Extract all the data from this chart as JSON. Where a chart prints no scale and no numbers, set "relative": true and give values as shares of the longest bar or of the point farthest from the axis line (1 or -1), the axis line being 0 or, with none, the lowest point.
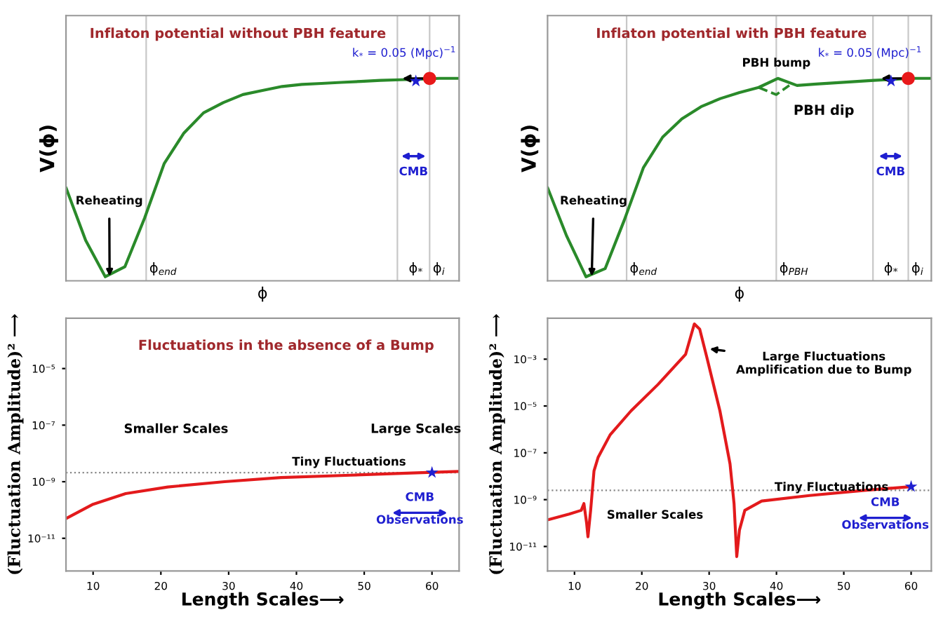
{
  "chart_data": [
    {
      "type": "line",
      "title": "Inflaton potential without PBH feature",
      "xlabel": "ϕ",
      "ylabel": "V(ϕ)",
      "relative": true,
      "categories": [
        null,
        null,
        null,
        null,
        null,
        null,
        null,
        null,
        null,
        null,
        null,
        null,
        null,
        null,
        null,
        null,
        null,
        null,
        null,
        null,
        null
      ],
      "series": [
        {
          "color": "#2a8a2a",
          "values": [
            0.46,
            0.2,
            0.02,
            0.07,
            0.31,
            0.58,
            0.73,
            0.83,
            0.88,
            0.92,
            0.94,
            0.96,
            0.97,
            0.975,
            0.98,
            0.985,
            0.99,
            0.993,
            0.996,
            1.0,
            1.0
          ]
        }
      ],
      "annotations": [
        "Reheating",
        "CMB",
        "k$_{*}$ = 0.05 (Mpc)$^{−1}$",
        "ϕ$_{end}$",
        "ϕ$_{*}$",
        "ϕ$_{i}$"
      ]
    },
    {
      "type": "line",
      "title": "Inflaton potential with PBH feature",
      "xlabel": "ϕ",
      "ylabel": "V(ϕ)",
      "relative": true,
      "categories": [
        null,
        null,
        null,
        null,
        null,
        null,
        null,
        null,
        null,
        null,
        null,
        null,
        null,
        null,
        null,
        null,
        null,
        null,
        null,
        null,
        null
      ],
      "series": [
        {
          "color": "#2a8a2a",
          "values": [
            0.46,
            0.22,
            0.02,
            0.06,
            0.3,
            0.56,
            0.71,
            0.8,
            0.86,
            0.9,
            0.93,
            0.955,
            1.0,
            0.965,
            0.972,
            0.978,
            0.984,
            0.99,
            0.995,
            1.0,
            1.0
          ]
        }
      ],
      "annotations": [
        "Reheating",
        "PBH bump",
        "PBH dip",
        "CMB",
        "k$_{*}$ = 0.05 (Mpc)$^{−1}$",
        "ϕ$_{end}$",
        "ϕ$_{PBH}$",
        "ϕ$_{*}$",
        "ϕ$_{i}$"
      ]
    },
    {
      "type": "line",
      "title": "Fluctuations in the absence of a Bump",
      "xlabel": "Length Scales⟶",
      "ylabel": "(Fluctuation Amplitude)² ⟶",
      "log": "y",
      "xlim": [
        6,
        64
      ],
      "xticks": [
        10,
        20,
        30,
        40,
        50,
        60
      ],
      "ylim": [
        7e-13,
        0.0006
      ],
      "yticks": [
        {
          "value": 1e-11,
          "label": "10⁻¹¹"
        },
        {
          "value": 1e-09,
          "label": "10⁻⁹"
        },
        {
          "value": 1e-07,
          "label": "10⁻⁷"
        },
        {
          "value": 1e-05,
          "label": "10⁻⁵"
        }
      ],
      "series": [
        {
          "color": "#e31a1c",
          "x": [
            6,
            10,
            14.8,
            21,
            29.4,
            37.7,
            48,
            58.5,
            64
          ],
          "values": [
            5e-11,
            1.6e-10,
            3.8e-10,
            6.5e-10,
            1e-09,
            1.4e-09,
            1.7e-09,
            2.1e-09,
            2.3e-09
          ]
        },
        {
          "type": "scatter",
          "marker": "star",
          "color": "#1f1fd0",
          "x": [
            60
          ],
          "values": [
            2.1e-09
          ]
        }
      ],
      "ref_lines": [
        {
          "axis": "y",
          "value": 2.1e-09,
          "color": "#888888",
          "line_style": "dotted"
        }
      ],
      "annotations": [
        "Smaller Scales",
        "Large Scales",
        "Tiny Fluctuations",
        "CMB",
        "Observations"
      ]
    },
    {
      "type": "line",
      "xlabel": "Length Scales⟶",
      "ylabel": "(Fluctuation Amplitude)² ⟶",
      "log": "y",
      "xlim": [
        6,
        63
      ],
      "xticks": [
        10,
        20,
        30,
        40,
        50,
        60
      ],
      "ylim": [
        9e-13,
        0.056
      ],
      "yticks": [
        {
          "value": 1e-11,
          "label": "10⁻¹¹"
        },
        {
          "value": 1e-09,
          "label": "10⁻⁹"
        },
        {
          "value": 1e-07,
          "label": "10⁻⁷"
        },
        {
          "value": 1e-05,
          "label": "10⁻⁵"
        },
        {
          "value": 0.001,
          "label": "10⁻³"
        }
      ],
      "series": [
        {
          "color": "#e31a1c",
          "x": [
            6.1,
            9.2,
            11.0,
            11.4,
            11.8,
            12.0,
            12.4,
            12.9,
            13.5,
            15.3,
            18.4,
            22.4,
            26.5,
            27.8,
            28.6,
            29.6,
            31.6,
            33.1,
            33.7,
            34.1,
            34.5,
            35.3,
            37.8,
            44.9,
            53.1,
            60
          ],
          "values": [
            1.4e-10,
            2.4e-10,
            3.5e-10,
            6.8e-10,
            1e-10,
            2.6e-11,
            3.5e-10,
            1.7e-08,
            6.3e-08,
            5.9e-07,
            6.2e-06,
            8.3e-05,
            0.0016,
            0.032,
            0.019,
            0.0014,
            6.2e-06,
            3.4e-08,
            6.8e-10,
            3.7e-12,
            5e-11,
            3.5e-10,
            8.7e-10,
            1.5e-09,
            2.5e-09,
            3.6e-09
          ]
        },
        {
          "type": "scatter",
          "marker": "star",
          "color": "#1f1fd0",
          "x": [
            60
          ],
          "values": [
            3.6e-09
          ]
        }
      ],
      "ref_lines": [
        {
          "axis": "y",
          "value": 2.5e-09,
          "color": "#888888",
          "line_style": "dotted"
        }
      ],
      "annotations": [
        {
          "text": "Large Fluctuations\nAmplification due to Bump",
          "x": 29.8,
          "y": 0.0028
        },
        "Smaller Scales",
        "Tiny Fluctuations",
        "CMB",
        "Observations"
      ]
    }
  ]
}
